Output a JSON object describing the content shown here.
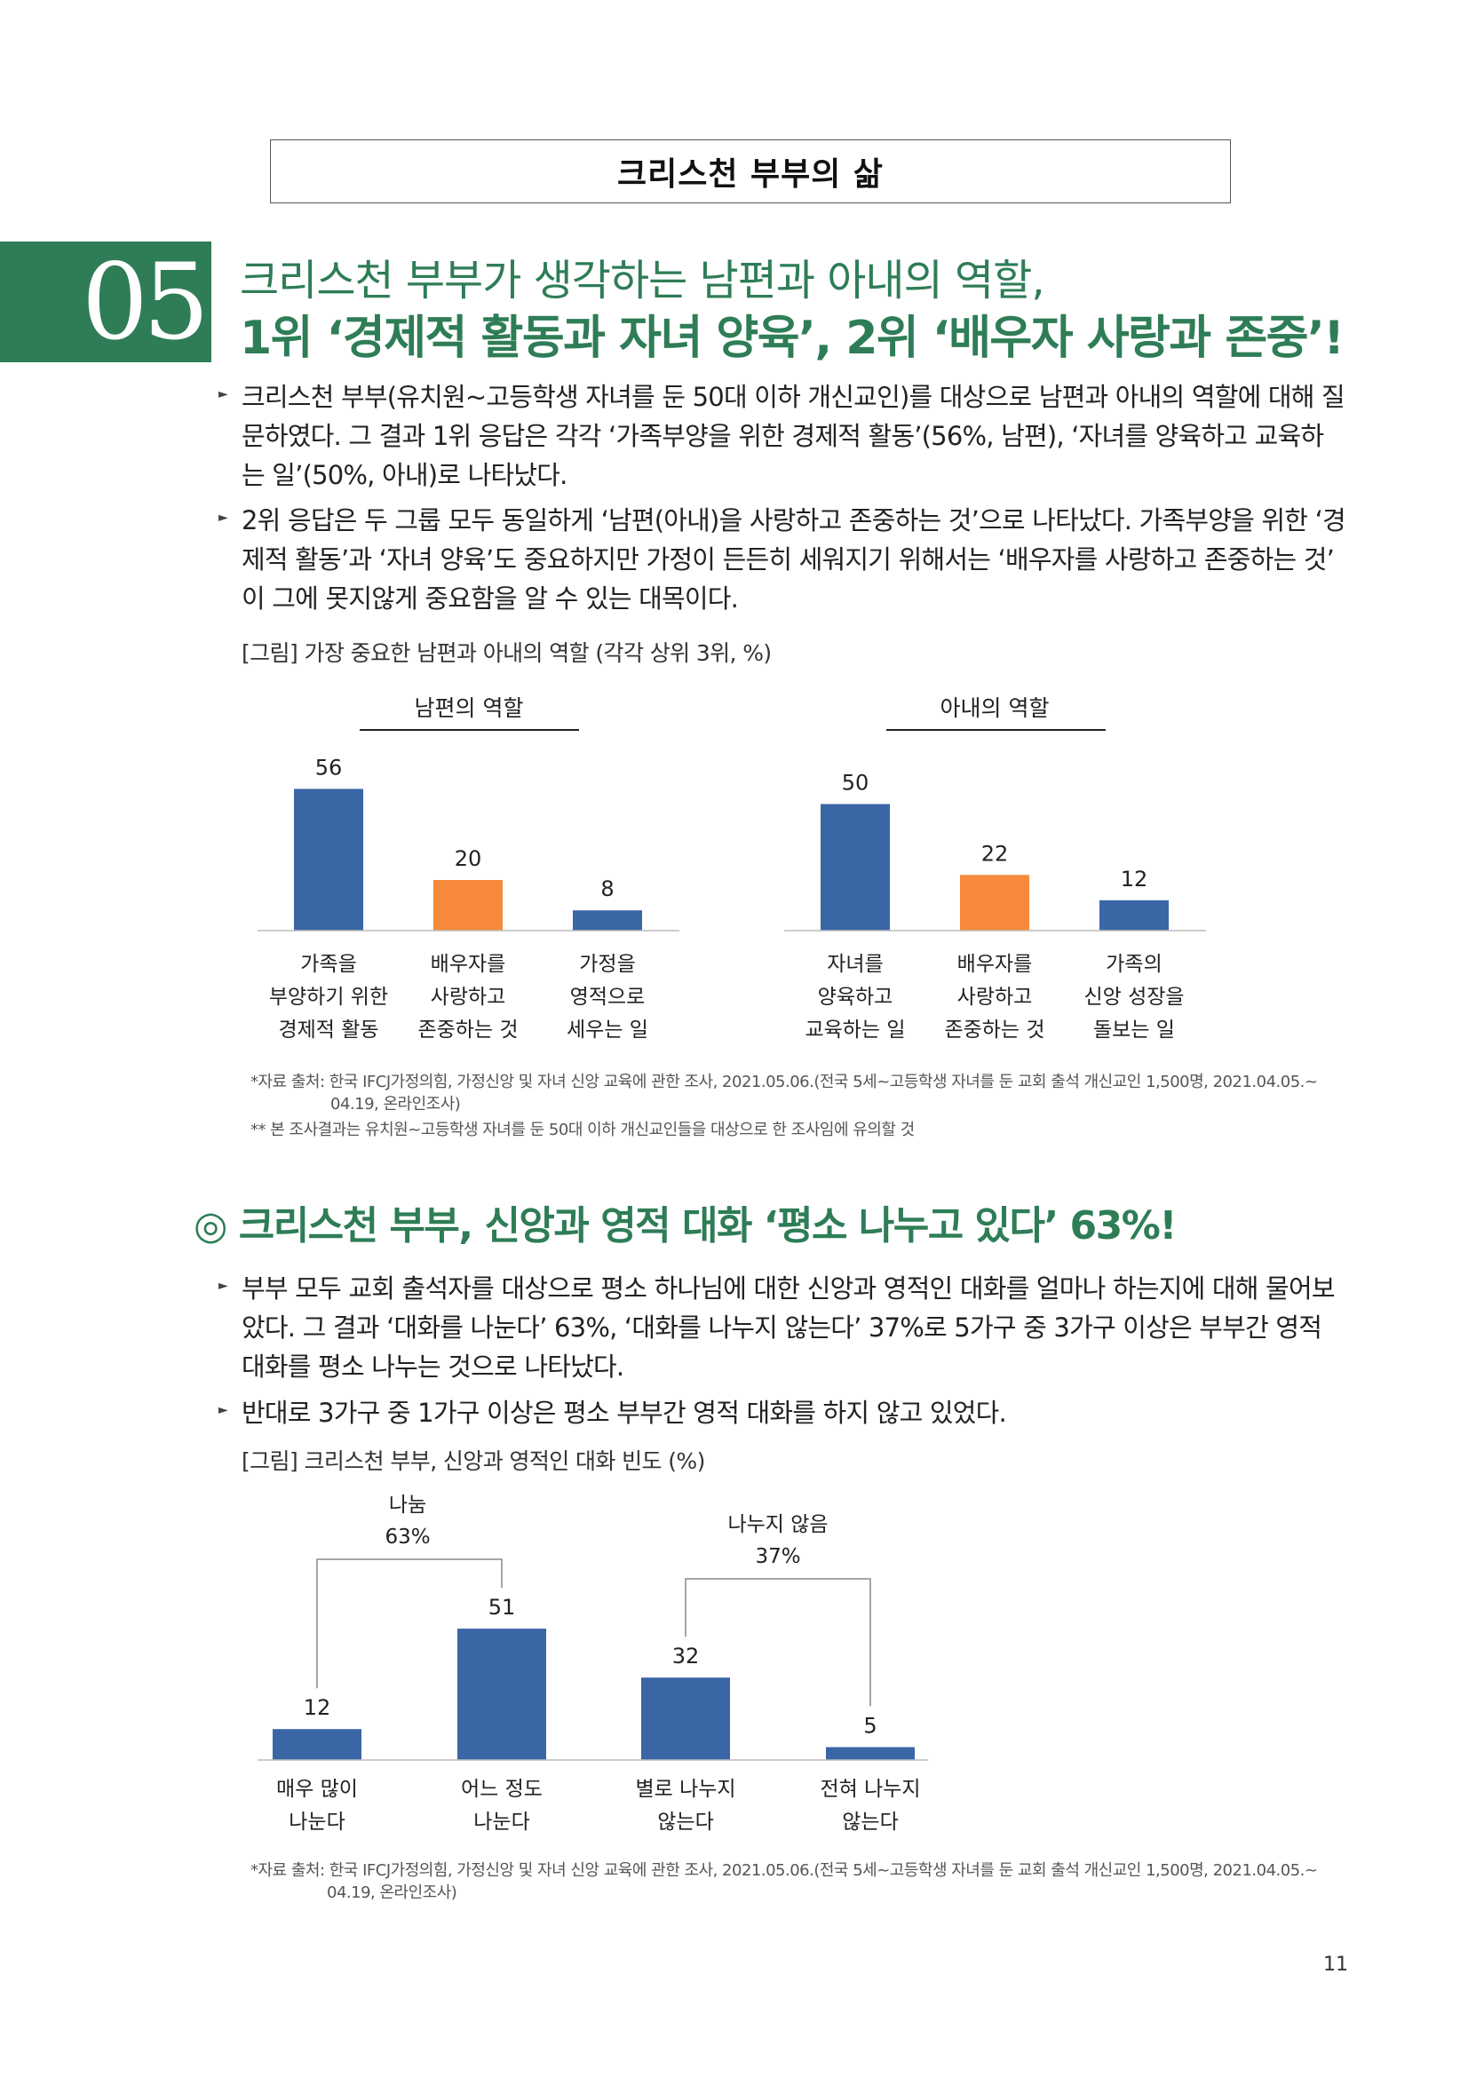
{
  "header": {
    "title": "크리스천 부부의 삶"
  },
  "section1": {
    "number": "05",
    "headline_line1": "크리스천 부부가 생각하는 남편과 아내의 역할,",
    "headline_line2": "1위 ‘경제적 활동과 자녀 양육’, 2위 ‘배우자 사랑과 존중’!",
    "paragraphs": [
      {
        "lines": [
          "크리스천 부부(유치원~고등학생 자녀를 둔 50대 이하 개신교인)를 대상으로 남편과 아내의 역할에 대해 질",
          "문하였다. 그 결과 1위 응답은 각각 ‘가족부양을 위한 경제적 활동’(56%, 남편), ‘자녀를 양육하고 교육하",
          "는 일’(50%, 아내)로 나타났다."
        ]
      },
      {
        "lines": [
          "2위 응답은 두 그룹 모두 동일하게 ‘남편(아내)을 사랑하고 존중하는 것’으로 나타났다. 가족부양을 위한 ‘경",
          "제적 활동’과 ‘자녀 양육’도 중요하지만 가정이 든든히 세워지기 위해서는 ‘배우자를 사랑하고 존중하는 것’",
          "이 그에 못지않게 중요함을 알 수 있는 대목이다."
        ]
      }
    ],
    "figure_caption": "[그림] 가장 중요한 남편과 아내의 역할 (각각 상위 3위, %)",
    "notes": [
      "*자료 출처: 한국 IFCJ가정의힘, 가정신앙 및 자녀 신앙 교육에 관한 조사, 2021.05.06.(전국 5세~고등학생 자녀를 둔 교회 출석 개신교인 1,500명, 2021.04.05.~",
      "04.19, 온라인조사)",
      "** 본 조사결과는 유치원~고등학생 자녀를 둔 50대 이하 개신교인들을 대상으로 한 조사임에 유의할 것"
    ]
  },
  "section2": {
    "headline": "◎ 크리스천 부부, 신앙과 영적 대화 ‘평소 나누고 있다’ 63%!",
    "paragraphs": [
      {
        "lines": [
          "부부 모두 교회 출석자를 대상으로 평소 하나님에 대한 신앙과 영적인 대화를 얼마나 하는지에 대해 물어보",
          "았다. 그 결과 ‘대화를 나눈다’ 63%, ‘대화를 나누지 않는다’ 37%로 5가구 중 3가구 이상은 부부간 영적",
          "대화를 평소 나누는 것으로 나타났다."
        ]
      },
      {
        "lines": [
          "반대로 3가구 중 1가구 이상은 평소 부부간 영적 대화를 하지 않고 있었다."
        ]
      }
    ],
    "figure_caption": "[그림] 크리스천 부부, 신앙과 영적인 대화 빈도 (%)",
    "notes": [
      "*자료 출처: 한국 IFCJ가정의힘, 가정신앙 및 자녀 신앙 교육에 관한 조사, 2021.05.06.(전국 5세~고등학생 자녀를 둔 교회 출석 개신교인 1,500명, 2021.04.05.~",
      "04.19, 온라인조사)"
    ]
  },
  "page_number": "11",
  "colors": {
    "accent": "#2e7d56",
    "bar_blue": "#3a66a6",
    "bar_orange": "#f68a3a"
  },
  "chart_data": [
    {
      "type": "bar",
      "title": "남편의 역할",
      "categories": [
        [
          "가족을",
          "부양하기 위한",
          "경제적 활동"
        ],
        [
          "배우자를",
          "사랑하고",
          "존중하는 것"
        ],
        [
          "가정을",
          "영적으로",
          "세우는 일"
        ]
      ],
      "values": [
        56,
        20,
        8
      ],
      "bar_colors": [
        "#3a66a6",
        "#f68a3a",
        "#3a66a6"
      ],
      "ylim": [
        0,
        60
      ]
    },
    {
      "type": "bar",
      "title": "아내의 역할",
      "categories": [
        [
          "자녀를",
          "양육하고",
          "교육하는 일"
        ],
        [
          "배우자를",
          "사랑하고",
          "존중하는 것"
        ],
        [
          "가족의",
          "신앙 성장을",
          "돌보는 일"
        ]
      ],
      "values": [
        50,
        22,
        12
      ],
      "bar_colors": [
        "#3a66a6",
        "#f68a3a",
        "#3a66a6"
      ],
      "ylim": [
        0,
        60
      ]
    },
    {
      "type": "bar",
      "categories": [
        [
          "매우 많이",
          "나눈다"
        ],
        [
          "어느 정도",
          "나눈다"
        ],
        [
          "별로 나누지",
          "않는다"
        ],
        [
          "전혀 나누지",
          "않는다"
        ]
      ],
      "values": [
        12,
        51,
        32,
        5
      ],
      "bar_colors": [
        "#3a66a6",
        "#3a66a6",
        "#3a66a6",
        "#3a66a6"
      ],
      "groups": [
        {
          "label": "나눔",
          "value": "63%"
        },
        {
          "label": "나누지 않음",
          "value": "37%"
        }
      ],
      "ylim": [
        0,
        60
      ]
    }
  ]
}
